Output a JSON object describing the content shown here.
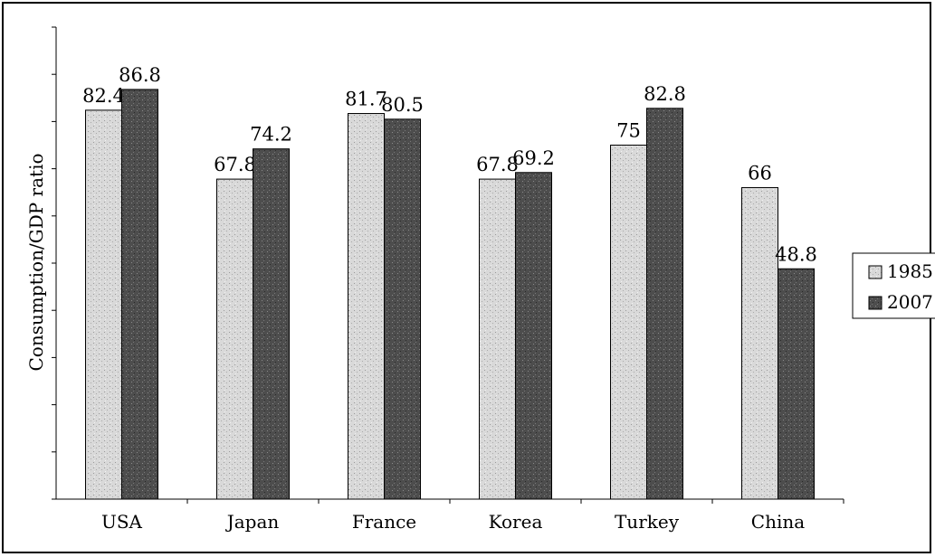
{
  "chart_data": {
    "type": "bar",
    "title": "",
    "xlabel": "",
    "ylabel": "Consumption/GDP ratio",
    "ylim": [
      0,
      100
    ],
    "grid": false,
    "legend_position": "right",
    "categories": [
      "USA",
      "Japan",
      "France",
      "Korea",
      "Turkey",
      "China"
    ],
    "series": [
      {
        "name": "1985",
        "values": [
          82.4,
          67.8,
          81.7,
          67.8,
          75,
          66
        ],
        "labels": [
          "82.4",
          "67.8",
          "81.7",
          "67.8",
          "75",
          "66"
        ]
      },
      {
        "name": "2007",
        "values": [
          86.8,
          74.2,
          80.5,
          69.2,
          82.8,
          48.8
        ],
        "labels": [
          "86.8",
          "74.2",
          "80.5",
          "69.2",
          "82.8",
          "48.8"
        ]
      }
    ],
    "colors": {
      "1985": "#d4d4d4",
      "2007": "#4a4a4a"
    }
  }
}
